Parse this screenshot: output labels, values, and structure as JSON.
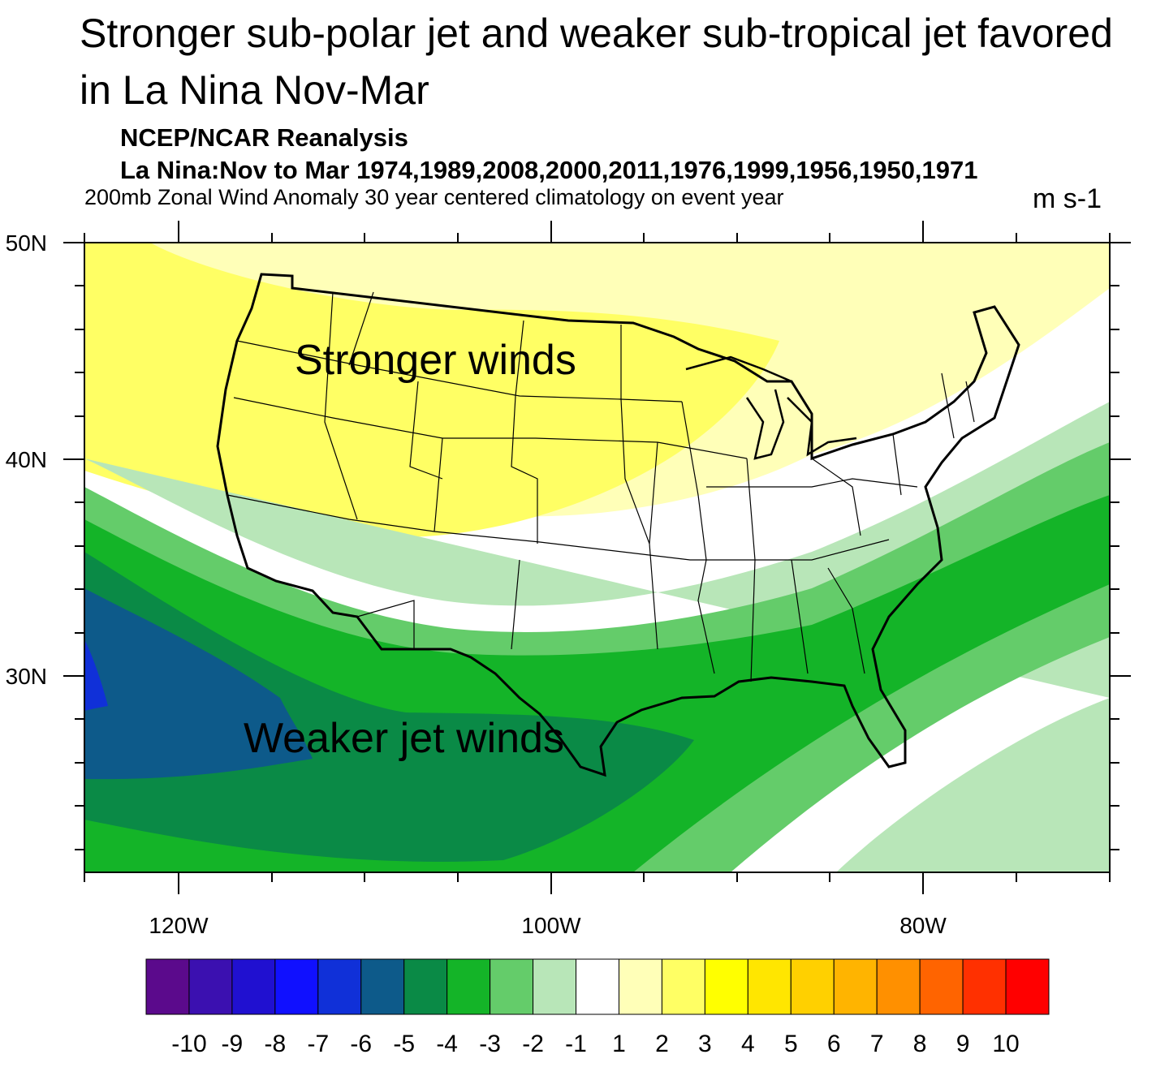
{
  "title": "Stronger sub-polar jet and weaker sub-tropical jet favored in La Nina Nov-Mar",
  "subtitle_source": "NCEP/NCAR Reanalysis",
  "subtitle_years": "La Nina:Nov to Mar 1974,1989,2008,2000,2011,1976,1999,1956,1950,1971",
  "subtitle_variable": "200mb Zonal Wind Anomaly 30 year centered climatology on event year",
  "units": "m s-1",
  "lat_labels": [
    "50N",
    "40N",
    "30N"
  ],
  "lon_labels": [
    "120W",
    "100W",
    "80W"
  ],
  "annotations": {
    "north": "Stronger winds",
    "south": "Weaker jet winds"
  },
  "colorbar": {
    "labels": [
      "-10",
      "-9",
      "-8",
      "-7",
      "-6",
      "-5",
      "-4",
      "-3",
      "-2",
      "-1",
      "1",
      "2",
      "3",
      "4",
      "5",
      "6",
      "7",
      "8",
      "9",
      "10"
    ],
    "colors": [
      "#5b0a8c",
      "#3b10b0",
      "#2010d0",
      "#1010ff",
      "#1030d8",
      "#0d5a8a",
      "#0a8a46",
      "#14b428",
      "#64cc6a",
      "#b8e6b8",
      "#ffffff",
      "#ffffb8",
      "#ffff64",
      "#ffff00",
      "#ffe600",
      "#ffd000",
      "#ffb400",
      "#ff9000",
      "#ff6400",
      "#ff3000",
      "#ff0000"
    ]
  }
}
